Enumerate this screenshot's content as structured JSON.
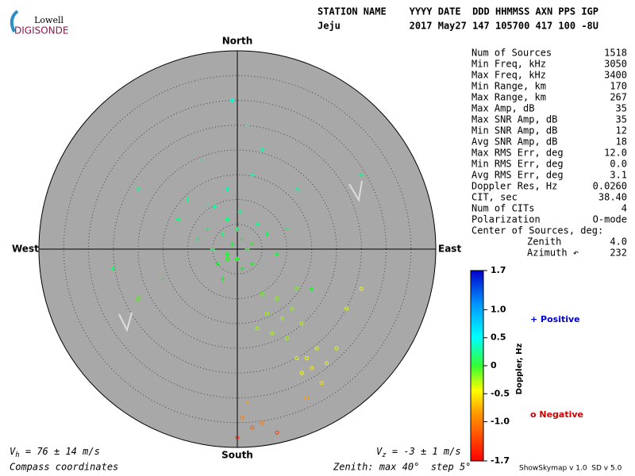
{
  "logo": {
    "top": "Lowell",
    "bottom": "DIGISONDE"
  },
  "header": {
    "row1": "STATION NAME    YYYY DATE  DDD HHMMSS AXN PPS IGP",
    "row2": "Jeju            2017 May27 147 105700 417 100 -8U"
  },
  "stats": [
    [
      "Num of Sources",
      "1518"
    ],
    [
      "Min Freq, kHz",
      "3050"
    ],
    [
      "Max Freq, kHz",
      "3400"
    ],
    [
      "Min Range, km",
      "170"
    ],
    [
      "Max Range, km",
      "267"
    ],
    [
      "Max Amp, dB",
      "35"
    ],
    [
      "Max SNR Amp, dB",
      "35"
    ],
    [
      "Min SNR Amp, dB",
      "12"
    ],
    [
      "Avg SNR Amp, dB",
      "18"
    ],
    [
      "Max RMS Err, deg",
      "12.0"
    ],
    [
      "Min RMS Err, deg",
      "0.0"
    ],
    [
      "Avg RMS Err, deg",
      "3.1"
    ],
    [
      "Doppler Res, Hz",
      "0.0260"
    ],
    [
      "CIT, sec",
      "38.40"
    ],
    [
      "Num of CITs",
      "4"
    ],
    [
      "Polarization",
      "O-mode"
    ]
  ],
  "center": {
    "title": "Center of Sources, deg:",
    "rows": [
      [
        "Zenith",
        "4.0"
      ],
      [
        "Azimuth ↶",
        "232"
      ]
    ]
  },
  "compass": {
    "north": "North",
    "south": "South",
    "east": "East",
    "west": "West"
  },
  "chart_data": {
    "type": "skymap",
    "zenith_max": 40,
    "zenith_step": 5,
    "sources": {
      "x": [
        -4.6,
        -2.0,
        0.5,
        -6,
        -3,
        1,
        -1,
        2,
        -2,
        0,
        3,
        -5,
        -8,
        4,
        6,
        -4,
        1,
        -10,
        -2,
        3,
        -7,
        2,
        -12,
        8,
        10,
        -1,
        -15,
        15,
        -20,
        12,
        5,
        -3,
        0,
        -6,
        25,
        -25,
        8,
        9,
        7,
        11,
        6,
        10,
        13,
        5,
        12,
        4,
        14,
        15,
        16,
        13,
        17,
        12,
        18,
        20,
        22,
        25,
        1,
        3,
        5,
        8,
        0,
        2,
        14,
        -2,
        3,
        -20
      ],
      "y": [
        8.6,
        6.0,
        7.5,
        4,
        3,
        2,
        1,
        0,
        -1,
        -2,
        -3,
        0,
        2,
        5,
        3,
        -3,
        -4,
        10,
        12,
        15,
        18,
        25,
        6,
        -1,
        4,
        30,
        -6,
        -8,
        12,
        12,
        20,
        -6,
        4,
        9,
        15,
        -4,
        -10,
        -14,
        -17,
        -12,
        -13,
        -18,
        -15,
        -9,
        -8,
        -16,
        -22,
        -24,
        -20,
        -25,
        -27,
        -22,
        -23,
        -20,
        -12,
        -8,
        -34,
        -36,
        -35,
        -37,
        -38,
        -31,
        -30,
        -2,
        1,
        -10
      ],
      "doppler": [
        0.5,
        0.4,
        0.45,
        0.3,
        0.35,
        0.2,
        0.15,
        0.1,
        0.1,
        0.05,
        0.05,
        0.2,
        0.3,
        0.4,
        0.25,
        0.1,
        0.05,
        0.5,
        0.6,
        0.55,
        0.6,
        0.6,
        0.4,
        0.15,
        0.3,
        0.7,
        0.2,
        0.1,
        0.45,
        0.5,
        0.6,
        0.05,
        0.3,
        0.5,
        0.4,
        0.3,
        -0.4,
        -0.5,
        -0.55,
        -0.45,
        -0.5,
        -0.5,
        -0.6,
        -0.3,
        -0.35,
        -0.5,
        -0.8,
        -0.9,
        -0.75,
        -0.85,
        -0.95,
        -0.8,
        -0.9,
        -0.7,
        -0.75,
        -0.8,
        -1.3,
        -1.4,
        -1.3,
        -1.5,
        -1.6,
        -1.2,
        -1.2,
        -0.05,
        -0.1,
        -0.2
      ]
    },
    "colorbar": {
      "label": "Doppler, Hz",
      "lim": [
        -1.7,
        1.7
      ],
      "ticks": [
        1.7,
        {
          "value": 1,
          "label": "1.0"
        },
        0.5,
        0,
        -0.5,
        {
          "value": -1,
          "label": "-1.0"
        },
        -1.7
      ]
    },
    "legend": {
      "positive": "+ Positive",
      "negative": "o Negative"
    }
  },
  "footer": {
    "vh": {
      "symbol": "V",
      "sub": "h",
      "text": " = 76 ± 14 m/s"
    },
    "vz": {
      "symbol": "V",
      "sub": "z",
      "text": " = -3 ± 1 m/s"
    },
    "coords": "Compass coordinates",
    "zenith": "Zenith: max 40°  step 5°",
    "version": "ShowSkymap v 1.0  SD v 5.0"
  }
}
